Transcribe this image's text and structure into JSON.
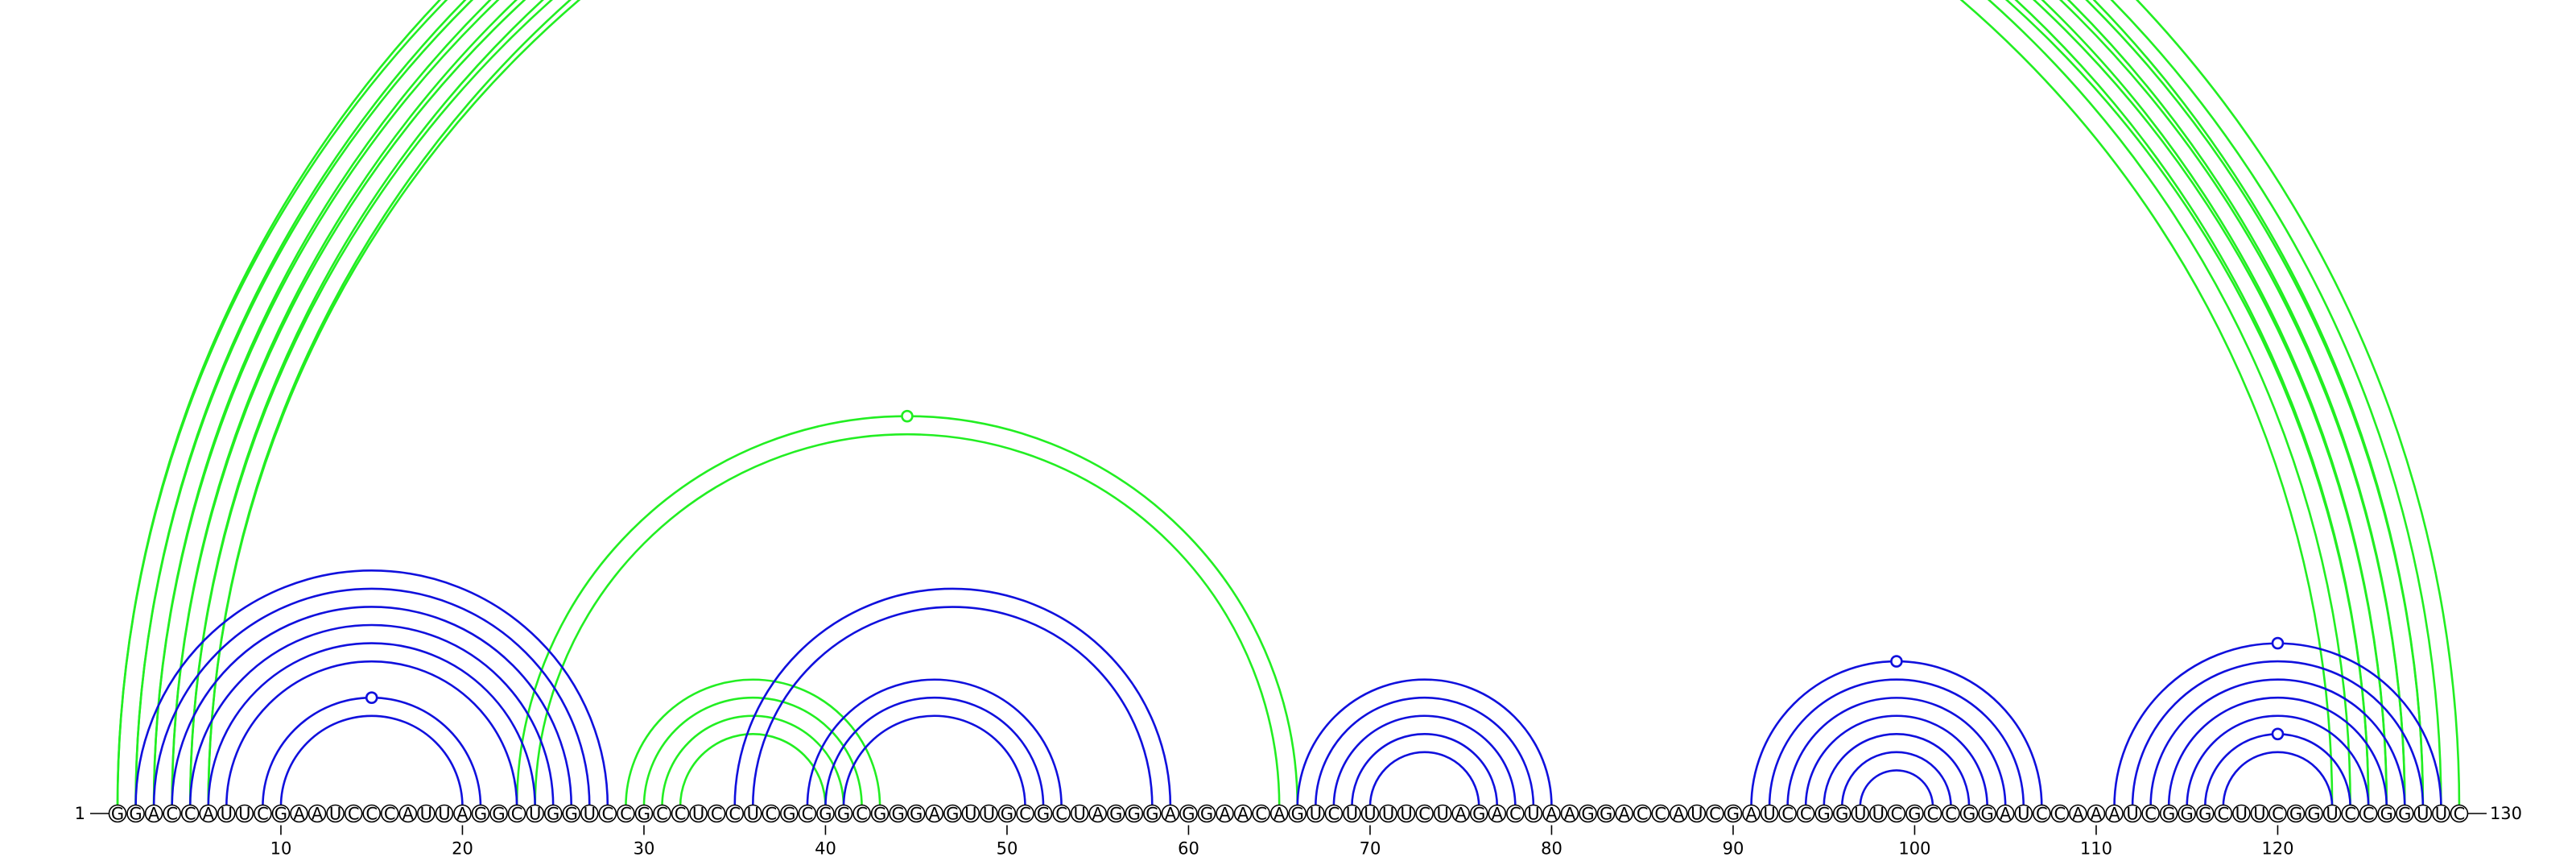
{
  "sequence": "GGACCAUUCGAAUCCCAUUAGGCUGGUCCGCCUCCUCGCGGCGGGAGUUGCGCUAGGGAGGAACAGUCUUUUCUAGACUAAGGACCAUCGAUCCGGUUCGCCGGAUCCAAAUCGGGCUUCGGUCCGGUUC",
  "start_label": "1",
  "end_label": "130",
  "ticks": [
    10,
    20,
    30,
    40,
    50,
    60,
    70,
    80,
    90,
    100,
    110,
    120
  ],
  "colors": {
    "blue": "#1010dd",
    "green": "#22ee22",
    "text": "#000000"
  },
  "arc_groups": [
    {
      "color": "green",
      "pairs": [
        [
          1,
          128
        ],
        [
          2,
          127
        ],
        [
          3,
          126
        ],
        [
          4,
          125
        ],
        [
          5,
          124
        ],
        [
          6,
          123
        ]
      ],
      "marker": true
    },
    {
      "color": "green",
      "pairs": [
        [
          1,
          130
        ],
        [
          2,
          129
        ],
        [
          3,
          128
        ],
        [
          4,
          127
        ],
        [
          5,
          126
        ],
        [
          6,
          125
        ]
      ],
      "marker": false
    },
    {
      "color": "green",
      "pairs": [
        [
          23,
          66
        ],
        [
          24,
          65
        ]
      ],
      "marker": true
    },
    {
      "color": "green",
      "pairs": [
        [
          29,
          43
        ],
        [
          30,
          42
        ],
        [
          31,
          41
        ],
        [
          32,
          40
        ]
      ],
      "marker": false
    },
    {
      "color": "blue",
      "pairs": [
        [
          2,
          28
        ],
        [
          3,
          27
        ],
        [
          4,
          26
        ],
        [
          5,
          25
        ],
        [
          6,
          24
        ],
        [
          7,
          23
        ]
      ],
      "marker": false
    },
    {
      "color": "blue",
      "pairs": [
        [
          9,
          21
        ],
        [
          10,
          20
        ]
      ],
      "marker": true
    },
    {
      "color": "blue",
      "pairs": [
        [
          35,
          59
        ],
        [
          36,
          58
        ]
      ],
      "marker": false
    },
    {
      "color": "blue",
      "pairs": [
        [
          39,
          53
        ],
        [
          40,
          52
        ],
        [
          41,
          51
        ]
      ],
      "marker": false
    },
    {
      "color": "blue",
      "pairs": [
        [
          66,
          80
        ],
        [
          67,
          79
        ],
        [
          68,
          78
        ],
        [
          69,
          77
        ],
        [
          70,
          76
        ]
      ],
      "marker": false
    },
    {
      "color": "blue",
      "pairs": [
        [
          91,
          107
        ],
        [
          92,
          106
        ],
        [
          93,
          105
        ],
        [
          94,
          104
        ],
        [
          95,
          103
        ],
        [
          96,
          102
        ],
        [
          97,
          101
        ]
      ],
      "marker": true
    },
    {
      "color": "blue",
      "pairs": [
        [
          111,
          129
        ],
        [
          112,
          128
        ],
        [
          113,
          127
        ],
        [
          114,
          126
        ],
        [
          115,
          125
        ]
      ],
      "marker": true
    },
    {
      "color": "blue",
      "pairs": [
        [
          116,
          124
        ],
        [
          117,
          123
        ]
      ],
      "marker": true
    }
  ]
}
